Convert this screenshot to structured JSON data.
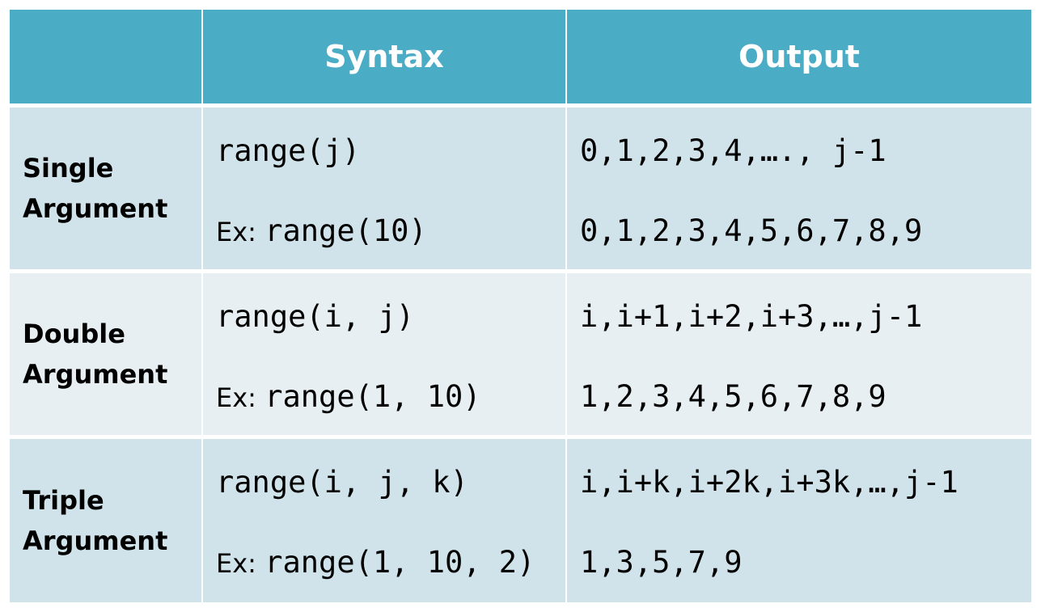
{
  "table": {
    "header": {
      "syntax": "Syntax",
      "output": "Output"
    },
    "rows": [
      {
        "label": "Single Argument",
        "syntax": "range(j)",
        "example": {
          "prefix": "Ex:",
          "code": "range(10)"
        },
        "output": "0,1,2,3,4,…., j-1",
        "example_output": "0,1,2,3,4,5,6,7,8,9"
      },
      {
        "label": "Double Argument",
        "syntax": "range(i, j)",
        "example": {
          "prefix": "Ex:",
          "code": "range(1, 10)"
        },
        "output": "i,i+1,i+2,i+3,…,j-1",
        "example_output": "1,2,3,4,5,6,7,8,9"
      },
      {
        "label": "Triple Argument",
        "syntax": "range(i, j, k)",
        "example": {
          "prefix": "Ex:",
          "code": "range(1, 10, 2)"
        },
        "output": "i,i+k,i+2k,i+3k,…,j-1",
        "example_output": "1,3,5,7,9"
      }
    ]
  }
}
